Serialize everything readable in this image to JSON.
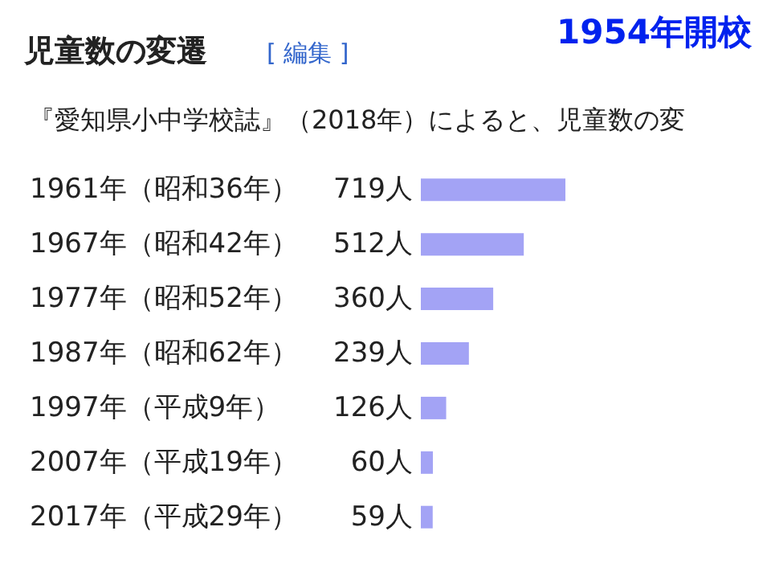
{
  "chart_data": {
    "type": "bar",
    "orientation": "horizontal",
    "title": "児童数の変遷",
    "subtitle": "『愛知県小中学校誌』（2018年）によると、児童数の変",
    "annotations": [
      "[ 編集 ]",
      "1954年開校"
    ],
    "categories": [
      "1961年（昭和36年）",
      "1967年（昭和42年）",
      "1977年（昭和52年）",
      "1987年（昭和62年）",
      "1997年（平成9年）",
      "2007年（平成19年）",
      "2017年（平成29年）"
    ],
    "values": [
      719,
      512,
      360,
      239,
      126,
      60,
      59
    ],
    "value_labels": [
      "719人",
      "512人",
      "360人",
      "239人",
      "126人",
      "60人",
      "59人"
    ],
    "color": "#a3a3f5"
  }
}
